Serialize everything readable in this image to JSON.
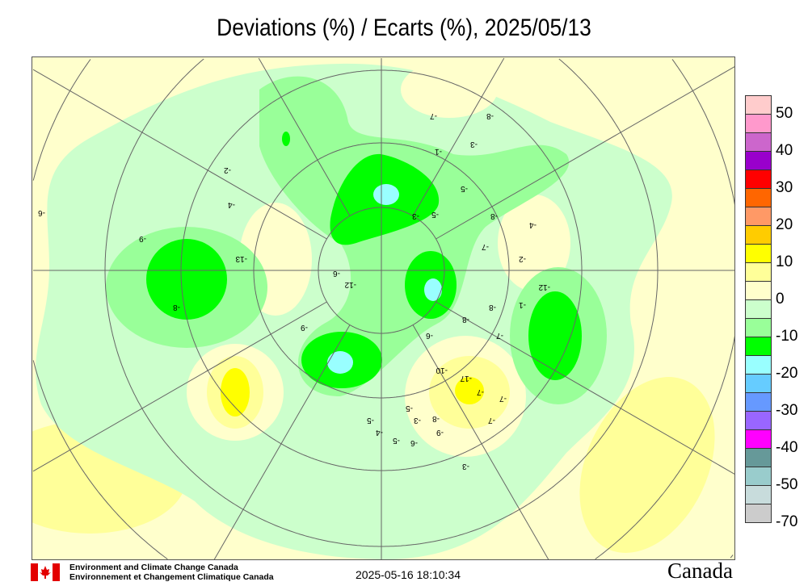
{
  "title": "Deviations (%) / Ecarts (%), 2025/05/13",
  "legend": {
    "colors": [
      "#ffcccc",
      "#ff99cc",
      "#cc66cc",
      "#9900cc",
      "#ff0000",
      "#ff6600",
      "#ff9966",
      "#ffcc00",
      "#ffff00",
      "#ffff99",
      "#ffffcc",
      "#ccffcc",
      "#99ff99",
      "#00ff00",
      "#99ffff",
      "#66ccff",
      "#6699ff",
      "#9966ff",
      "#ff00ff",
      "#669999",
      "#99cccc",
      "#c8dcdc",
      "#cccccc"
    ],
    "labels": [
      "50",
      "40",
      "30",
      "20",
      "10",
      "0",
      "-10",
      "-20",
      "-30",
      "-40",
      "-50",
      "-70"
    ]
  },
  "map": {
    "projection": "north polar stereographic",
    "contour_labels": [
      "-7",
      "-8",
      "-3",
      "-1",
      "-5",
      "-3",
      "-5",
      "-8",
      "-4",
      "-7",
      "-2",
      "-12",
      "-1",
      "-8",
      "-8",
      "-7",
      "-2",
      "-4",
      "-13",
      "-8",
      "-6",
      "-12",
      "-9",
      "-6",
      "-10",
      "-17",
      "-7",
      "-7",
      "-7",
      "-5",
      "-3",
      "-8",
      "-9",
      "-6",
      "-5",
      "-4",
      "-5",
      "-3",
      "-6",
      "-9"
    ]
  },
  "footer": {
    "org_en": "Environment and Climate Change Canada",
    "org_fr": "Environnement et Changement Climatique Canada",
    "timestamp": "2025-05-16 18:10:34",
    "wordmark": "Canada"
  }
}
